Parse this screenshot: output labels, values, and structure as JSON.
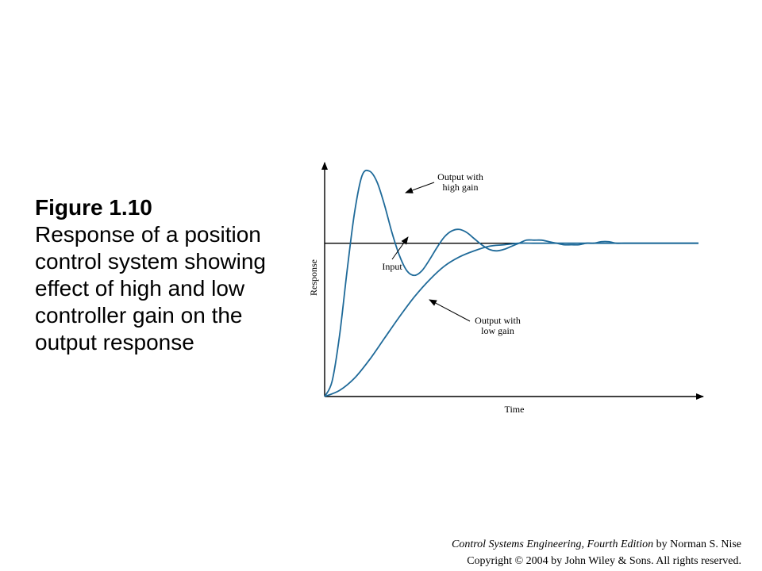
{
  "caption": {
    "title": "Figure 1.10",
    "body": "Response of a position control system showing effect of high and low controller gain on the output response"
  },
  "footer": {
    "book_title": "Control Systems Engineering, Fourth Edition",
    "author": " by Norman S. Nise",
    "copyright": "Copyright © 2004 by John Wiley  & Sons. All rights reserved."
  },
  "chart_data": {
    "type": "line",
    "title": "",
    "xlabel": "Time",
    "ylabel": "Response",
    "xlim": [
      0,
      10
    ],
    "ylim": [
      0,
      1.5
    ],
    "grid": false,
    "colors": {
      "axis": "#000000",
      "curve": "#1f6a99"
    },
    "series": [
      {
        "name": "Input",
        "color": "#000000",
        "x": [
          0,
          10
        ],
        "y": [
          1,
          1
        ]
      },
      {
        "name": "Output with high gain",
        "color": "#1f6a99",
        "x": [
          0,
          0.2,
          0.4,
          0.6,
          0.8,
          1.0,
          1.2,
          1.4,
          1.6,
          1.8,
          2.0,
          2.2,
          2.4,
          2.6,
          2.8,
          3.0,
          3.2,
          3.4,
          3.6,
          3.8,
          4.0,
          4.2,
          4.4,
          4.6,
          4.8,
          5.0,
          5.2,
          5.4,
          5.6,
          5.8,
          6.0,
          6.2,
          6.4,
          6.6,
          6.8,
          7.0,
          7.2,
          7.4,
          7.6,
          7.8,
          8.0,
          8.2,
          8.4,
          8.6,
          8.8,
          9.0,
          9.2,
          9.4,
          9.6,
          9.8,
          10.0
        ],
        "y": [
          0,
          0.1,
          0.4,
          0.82,
          1.2,
          1.44,
          1.47,
          1.4,
          1.25,
          1.07,
          0.92,
          0.82,
          0.79,
          0.82,
          0.89,
          0.97,
          1.04,
          1.08,
          1.09,
          1.07,
          1.03,
          0.99,
          0.96,
          0.95,
          0.96,
          0.98,
          1.0,
          1.02,
          1.02,
          1.02,
          1.01,
          1.0,
          0.99,
          0.99,
          0.99,
          1.0,
          1.0,
          1.01,
          1.01,
          1.0,
          1.0,
          1.0,
          1.0,
          1.0,
          1.0,
          1.0,
          1.0,
          1.0,
          1.0,
          1.0,
          1.0
        ]
      },
      {
        "name": "Output with low gain",
        "color": "#1f6a99",
        "x": [
          0,
          0.4,
          0.8,
          1.2,
          1.6,
          2.0,
          2.4,
          2.8,
          3.2,
          3.6,
          4.0,
          4.4,
          4.8,
          5.2,
          5.6,
          6.0,
          6.4,
          6.8,
          7.2,
          7.6,
          8.0,
          8.4,
          8.8,
          9.2,
          9.6,
          10.0
        ],
        "y": [
          0,
          0.04,
          0.12,
          0.24,
          0.38,
          0.52,
          0.65,
          0.76,
          0.85,
          0.91,
          0.95,
          0.98,
          0.99,
          1.0,
          1.0,
          1.0,
          1.0,
          1.0,
          1.0,
          1.0,
          1.0,
          1.0,
          1.0,
          1.0,
          1.0,
          1.0
        ]
      }
    ],
    "annotations": [
      {
        "text": [
          "Output with",
          "high gain"
        ],
        "target": "Output with high gain",
        "x": 2.2,
        "y": 1.4
      },
      {
        "text": [
          "Input"
        ],
        "target": "Input",
        "x": 2.1,
        "y": 1.0
      },
      {
        "text": [
          "Output with",
          "low gain"
        ],
        "target": "Output with low gain",
        "x": 2.8,
        "y": 0.69
      }
    ]
  }
}
